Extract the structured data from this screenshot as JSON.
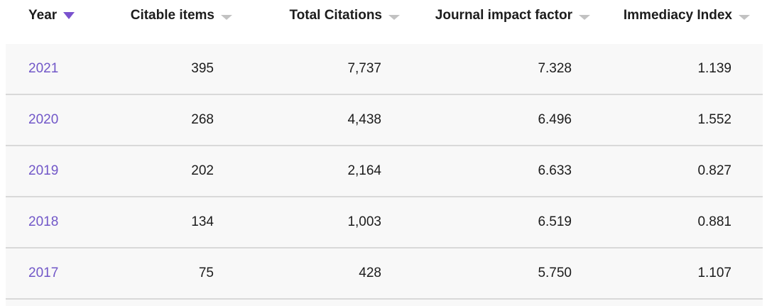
{
  "colors": {
    "link_purple": "#7157c8",
    "sort_active_purple": "#7a52ce",
    "sort_inactive_gray": "#c2c2c2",
    "row_background": "#f8f8f8",
    "divider_gray": "#d9d9d9",
    "text_dark": "#1c1c1c"
  },
  "table": {
    "columns": [
      {
        "label": "Year",
        "sort_state": "sorted-descending",
        "align": "left"
      },
      {
        "label": "Citable items",
        "sort_state": "unsorted",
        "align": "right"
      },
      {
        "label": "Total Citations",
        "sort_state": "unsorted",
        "align": "right"
      },
      {
        "label": "Journal impact factor",
        "sort_state": "unsorted",
        "align": "right"
      },
      {
        "label": "Immediacy Index",
        "sort_state": "unsorted",
        "align": "right"
      }
    ],
    "rows": [
      {
        "year": "2021",
        "citable_items": "395",
        "total_citations": "7,737",
        "journal_impact_factor": "7.328",
        "immediacy_index": "1.139"
      },
      {
        "year": "2020",
        "citable_items": "268",
        "total_citations": "4,438",
        "journal_impact_factor": "6.496",
        "immediacy_index": "1.552"
      },
      {
        "year": "2019",
        "citable_items": "202",
        "total_citations": "2,164",
        "journal_impact_factor": "6.633",
        "immediacy_index": "0.827"
      },
      {
        "year": "2018",
        "citable_items": "134",
        "total_citations": "1,003",
        "journal_impact_factor": "6.519",
        "immediacy_index": "0.881"
      },
      {
        "year": "2017",
        "citable_items": "75",
        "total_citations": "428",
        "journal_impact_factor": "5.750",
        "immediacy_index": "1.107"
      }
    ]
  }
}
